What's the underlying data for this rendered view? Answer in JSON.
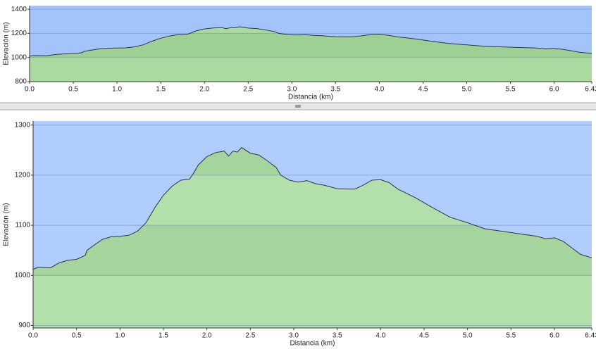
{
  "chart_data": [
    {
      "type": "area",
      "xlabel": "Distancia   (km)",
      "ylabel": "Elevación (m)",
      "x": [
        0.0,
        0.05,
        0.2,
        0.3,
        0.4,
        0.5,
        0.6,
        0.62,
        0.7,
        0.8,
        0.9,
        1.0,
        1.1,
        1.2,
        1.3,
        1.4,
        1.5,
        1.6,
        1.7,
        1.8,
        1.85,
        1.9,
        2.0,
        2.1,
        2.2,
        2.25,
        2.3,
        2.35,
        2.4,
        2.5,
        2.6,
        2.7,
        2.8,
        2.85,
        2.95,
        3.05,
        3.15,
        3.25,
        3.35,
        3.5,
        3.7,
        3.8,
        3.9,
        4.0,
        4.1,
        4.2,
        4.4,
        4.6,
        4.8,
        5.0,
        5.2,
        5.4,
        5.6,
        5.8,
        5.9,
        6.0,
        6.1,
        6.2,
        6.3,
        6.43
      ],
      "values": [
        1012,
        1016,
        1015,
        1025,
        1030,
        1032,
        1040,
        1050,
        1060,
        1072,
        1077,
        1078,
        1080,
        1088,
        1105,
        1135,
        1160,
        1178,
        1190,
        1192,
        1205,
        1220,
        1237,
        1245,
        1248,
        1238,
        1248,
        1246,
        1255,
        1244,
        1240,
        1228,
        1215,
        1200,
        1190,
        1186,
        1189,
        1183,
        1180,
        1173,
        1172,
        1180,
        1190,
        1191,
        1185,
        1172,
        1155,
        1135,
        1116,
        1105,
        1093,
        1088,
        1083,
        1078,
        1073,
        1075,
        1068,
        1055,
        1042,
        1035
      ],
      "color": "#a9dba0",
      "line_color": "#333333",
      "background": "#a3c4fb",
      "grid": true,
      "xlim": [
        0,
        6.43
      ],
      "xticks": [
        {
          "value": 0,
          "label": "0.0"
        },
        0.5,
        {
          "value": 1,
          "label": "1.0"
        },
        1.5,
        {
          "value": 2,
          "label": "2.0"
        },
        2.5,
        {
          "value": 3,
          "label": "3.0"
        },
        3.5,
        {
          "value": 4,
          "label": "4.0"
        },
        4.5,
        {
          "value": 5,
          "label": "5.0"
        },
        5.5,
        {
          "value": 6,
          "label": "6.0"
        },
        6.43
      ],
      "ylim": [
        800,
        1430
      ],
      "yticks": [
        800,
        1000,
        1200,
        1400
      ]
    },
    {
      "type": "area",
      "xlabel": "Distancia   (km)",
      "ylabel": "Elevación (m)",
      "x": [
        0.0,
        0.05,
        0.2,
        0.3,
        0.4,
        0.5,
        0.6,
        0.62,
        0.7,
        0.8,
        0.9,
        1.0,
        1.1,
        1.2,
        1.3,
        1.4,
        1.5,
        1.6,
        1.7,
        1.8,
        1.85,
        1.9,
        2.0,
        2.1,
        2.2,
        2.25,
        2.3,
        2.35,
        2.4,
        2.5,
        2.6,
        2.7,
        2.8,
        2.85,
        2.95,
        3.05,
        3.15,
        3.25,
        3.35,
        3.5,
        3.7,
        3.8,
        3.9,
        4.0,
        4.1,
        4.2,
        4.4,
        4.6,
        4.8,
        5.0,
        5.2,
        5.4,
        5.6,
        5.8,
        5.9,
        6.0,
        6.1,
        6.2,
        6.3,
        6.43
      ],
      "values": [
        1012,
        1016,
        1015,
        1025,
        1030,
        1032,
        1040,
        1050,
        1060,
        1072,
        1077,
        1078,
        1080,
        1088,
        1105,
        1135,
        1160,
        1178,
        1190,
        1192,
        1205,
        1220,
        1237,
        1245,
        1248,
        1238,
        1248,
        1246,
        1255,
        1244,
        1240,
        1228,
        1215,
        1200,
        1190,
        1186,
        1189,
        1183,
        1180,
        1173,
        1172,
        1180,
        1190,
        1191,
        1185,
        1172,
        1155,
        1135,
        1116,
        1105,
        1093,
        1088,
        1083,
        1078,
        1073,
        1075,
        1068,
        1055,
        1042,
        1035
      ],
      "color": "#b3dfab",
      "line_color": "#333333",
      "background": "#b0cdfd",
      "grid": true,
      "xlim": [
        0,
        6.43
      ],
      "xticks": [
        {
          "value": 0,
          "label": "0.0"
        },
        0.5,
        {
          "value": 1,
          "label": "1.0"
        },
        1.5,
        {
          "value": 2,
          "label": "2.0"
        },
        2.5,
        {
          "value": 3,
          "label": "3.0"
        },
        3.5,
        {
          "value": 4,
          "label": "4.0"
        },
        4.5,
        {
          "value": 5,
          "label": "5.0"
        },
        5.5,
        {
          "value": 6,
          "label": "6.0"
        },
        6.43
      ],
      "ylim": [
        895,
        1308
      ],
      "yticks": [
        900,
        1000,
        1100,
        1200,
        1300
      ]
    }
  ]
}
